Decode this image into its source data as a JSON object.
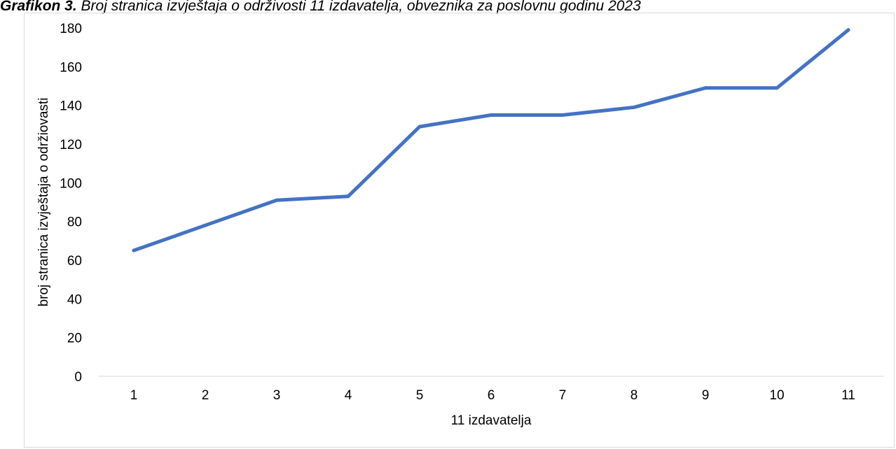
{
  "chart_data": {
    "type": "line",
    "title_prefix": "Grafikon 3.",
    "title": "Broj stranica izvještaja o održivosti 11 izdavatelja, obveznika za poslovnu godinu 2023",
    "xlabel": "11 izdavatelja",
    "ylabel": "broj stranica izvještaja o održiovasti",
    "categories": [
      "1",
      "2",
      "3",
      "4",
      "5",
      "6",
      "7",
      "8",
      "9",
      "10",
      "11"
    ],
    "series": [
      {
        "values": [
          65,
          78,
          91,
          93,
          129,
          135,
          135,
          139,
          149,
          149,
          179
        ],
        "color": "#4472C4"
      }
    ],
    "ylim": [
      0,
      180
    ],
    "yticks": [
      0,
      20,
      40,
      60,
      80,
      100,
      120,
      140,
      160,
      180
    ],
    "grid": false,
    "legend": "none"
  }
}
